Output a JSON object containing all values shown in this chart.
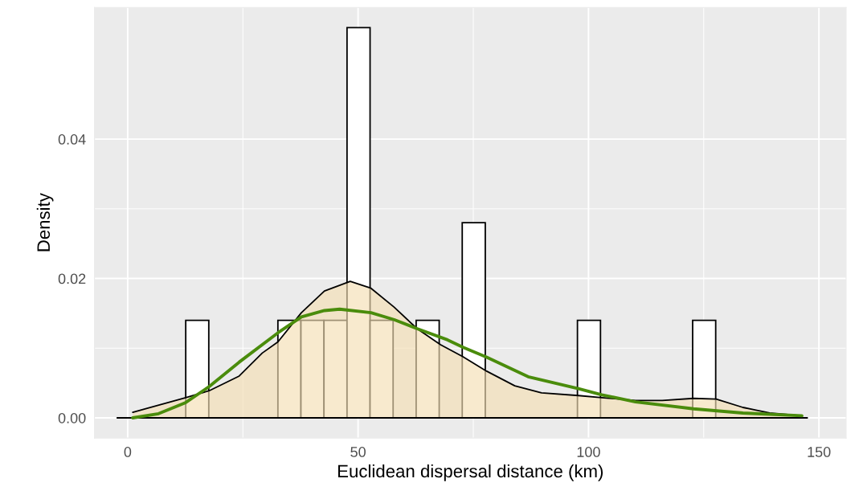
{
  "chart_data": {
    "type": "histogram",
    "xlabel": "Euclidean dispersal distance (km)",
    "ylabel": "Density",
    "bins": [
      -2.4,
      2.6,
      7.6,
      12.6,
      17.6,
      22.6,
      27.6,
      32.6,
      37.6,
      42.6,
      47.6,
      52.6,
      57.6,
      62.6,
      67.6,
      72.6,
      77.6,
      82.6,
      87.6,
      92.6,
      97.6,
      102.6,
      107.6,
      112.6,
      117.6,
      122.6,
      127.6,
      132.6,
      137.6,
      142.6,
      147.6
    ],
    "values": [
      0,
      0,
      0,
      0.014,
      0,
      0,
      0,
      0.014,
      0.014,
      0.014,
      0.056,
      0.014,
      0,
      0.014,
      0,
      0.028,
      0,
      0,
      0,
      0,
      0.014,
      0,
      0,
      0,
      0,
      0.014,
      0,
      0,
      0,
      0
    ],
    "color": "#ffffff",
    "series": [
      {
        "type": "area",
        "color": "#f5deb3",
        "x": [
          1.1,
          12.6,
          17.7,
          24.2,
          29.2,
          32.6,
          37.7,
          42.7,
          48.3,
          52.8,
          57.8,
          62.8,
          67.9,
          72.7,
          77.9,
          84.0,
          89.8,
          97.8,
          102.9,
          110.2,
          116.0,
          122.8,
          127.7,
          133.5,
          139.3,
          146.3
        ],
        "values": [
          0.0008,
          0.0029,
          0.0039,
          0.006,
          0.0093,
          0.0109,
          0.0151,
          0.0182,
          0.0196,
          0.0186,
          0.0159,
          0.0128,
          0.0105,
          0.0088,
          0.0067,
          0.0046,
          0.0036,
          0.0032,
          0.0029,
          0.0025,
          0.0025,
          0.0028,
          0.0027,
          0.0015,
          0.0007,
          0.0003
        ]
      },
      {
        "type": "line",
        "color": "#4a8c0c",
        "x": [
          1.1,
          6.7,
          12.6,
          17.7,
          24.2,
          32.6,
          37.7,
          42.7,
          46.0,
          52.8,
          57.8,
          62.8,
          69.4,
          72.9,
          77.9,
          86.9,
          97.8,
          102.9,
          110.2,
          122.8,
          133.5,
          146.3
        ],
        "values": [
          0.0,
          0.0006,
          0.0022,
          0.0045,
          0.008,
          0.0122,
          0.0145,
          0.0154,
          0.0156,
          0.0151,
          0.0141,
          0.0128,
          0.0112,
          0.0101,
          0.0087,
          0.0059,
          0.0042,
          0.0033,
          0.0023,
          0.0013,
          0.0007,
          0.0003
        ]
      }
    ],
    "xlim": [
      -7.2,
      155.9
    ],
    "ylim": [
      -0.0029,
      0.0589
    ],
    "xticks": [
      0,
      50,
      100,
      150
    ],
    "yticks": [
      {
        "value": 0,
        "label": "0.00"
      },
      {
        "value": 0.02,
        "label": "0.02"
      },
      {
        "value": 0.04,
        "label": "0.04"
      }
    ],
    "grid": true,
    "legend": false
  }
}
